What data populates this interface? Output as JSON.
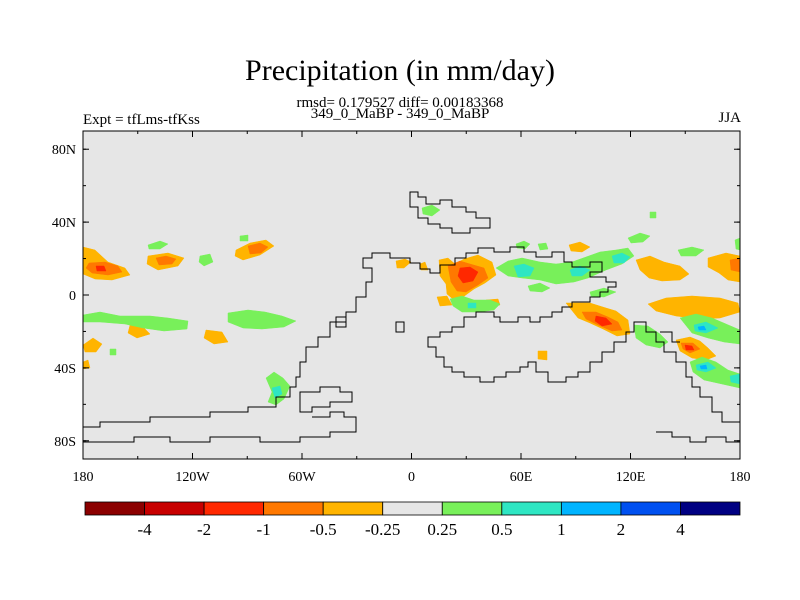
{
  "title": "Precipitation (in mm/day)",
  "subtitle": "rmsd= 0.179527 diff= 0.00183368",
  "left_label": "Expt = tfLms-tfKss",
  "center_label": "349_0_MaBP - 349_0_MaBP",
  "right_label": "JJA",
  "map": {
    "background_color": "#e6e6e6",
    "lon_ticks": [
      "180",
      "120W",
      "60W",
      "0",
      "60E",
      "120E",
      "180"
    ],
    "lat_ticks": [
      "80N",
      "40N",
      "0",
      "40S",
      "80S"
    ],
    "lon_values": [
      -180,
      -120,
      -60,
      0,
      60,
      120,
      180
    ],
    "lat_values": [
      80,
      40,
      0,
      -40,
      -80
    ]
  },
  "colorbar": {
    "colors": [
      "#8b0000",
      "#c80000",
      "#ff2800",
      "#ff7800",
      "#ffb400",
      "#e6e6e6",
      "#78f05a",
      "#2ee6c3",
      "#00b4ff",
      "#0050f0",
      "#000082"
    ],
    "labels": [
      "-4",
      "-2",
      "-1",
      "-0.5",
      "-0.25",
      "0.25",
      "0.5",
      "1",
      "2",
      "4"
    ]
  }
}
